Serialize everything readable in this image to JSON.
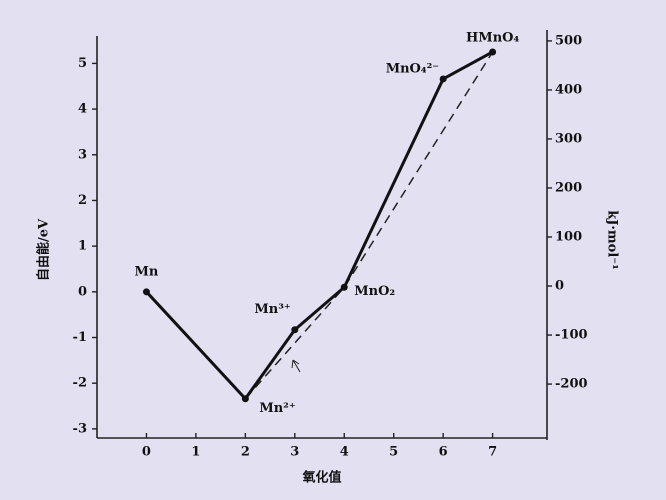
{
  "chart_data": {
    "type": "line",
    "x_label": "氧化值",
    "y_label": "自由能/eV",
    "y2_label": "kJ·mol⁻¹",
    "x": [
      0,
      2,
      3,
      4,
      6,
      7
    ],
    "series": [
      {
        "values": [
          0,
          -2.34,
          -0.83,
          0.1,
          4.66,
          5.25
        ],
        "color": "#111111",
        "point_labels": [
          "Mn",
          "Mn²⁺",
          "Mn³⁺",
          "MnO₂",
          "MnO₄²⁻",
          "HMnO₄"
        ]
      }
    ],
    "xlim": [
      -1,
      8.1
    ],
    "xticks": [
      0,
      1,
      2,
      3,
      4,
      5,
      6,
      7
    ],
    "ylim": [
      -3.2,
      5.6
    ],
    "yticks": [
      -3,
      -2,
      -1,
      0,
      1,
      2,
      3,
      4,
      5
    ],
    "y2lim": [
      -310,
      510
    ],
    "y2ticks": [
      -200,
      -100,
      0,
      100,
      200,
      300,
      400,
      500
    ]
  }
}
